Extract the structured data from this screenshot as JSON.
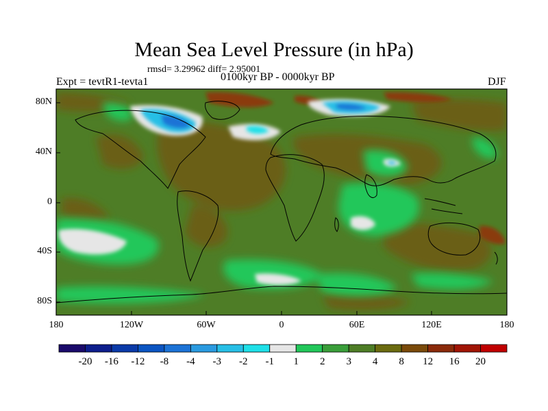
{
  "title": "Mean Sea Level Pressure (in hPa)",
  "stats": "rmsd= 3.29962 diff= 2.95001",
  "experiment": "Expt = tevtR1-tevta1",
  "period": "0100kyr BP - 0000kyr BP",
  "season": "DJF",
  "lat_ticks": [
    "80N",
    "40N",
    "0",
    "40S",
    "80S"
  ],
  "lon_ticks": [
    "180",
    "120W",
    "60W",
    "0",
    "60E",
    "120E",
    "180"
  ],
  "colorbar": {
    "labels": [
      "-20",
      "-16",
      "-12",
      "-8",
      "-4",
      "-3",
      "-2",
      "-1",
      "1",
      "2",
      "3",
      "4",
      "8",
      "12",
      "16",
      "20"
    ],
    "colors": [
      "#1a0a6b",
      "#0d1e8c",
      "#0a3aa8",
      "#0b55c2",
      "#1c73d6",
      "#2a9ae0",
      "#27bfe6",
      "#1fe0e8",
      "#e6e6e6",
      "#22c75a",
      "#3a9e3a",
      "#4e7d26",
      "#6b6b10",
      "#7a4a0a",
      "#8a2a0a",
      "#a01505",
      "#c00000"
    ]
  }
}
